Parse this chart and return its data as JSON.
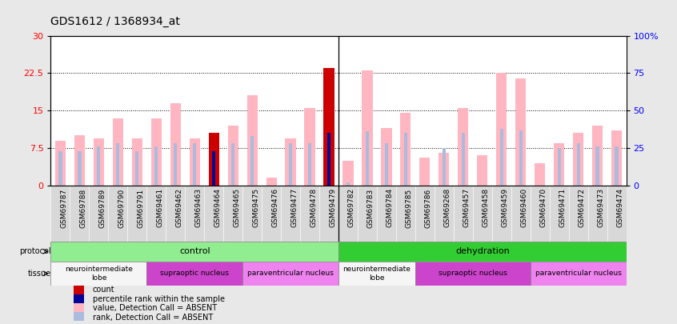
{
  "title": "GDS1612 / 1368934_at",
  "samples": [
    "GSM69787",
    "GSM69788",
    "GSM69789",
    "GSM69790",
    "GSM69791",
    "GSM69461",
    "GSM69462",
    "GSM69463",
    "GSM69464",
    "GSM69465",
    "GSM69475",
    "GSM69476",
    "GSM69477",
    "GSM69478",
    "GSM69479",
    "GSM69782",
    "GSM69783",
    "GSM69784",
    "GSM69785",
    "GSM69786",
    "GSM69268",
    "GSM69457",
    "GSM69458",
    "GSM69459",
    "GSM69460",
    "GSM69470",
    "GSM69471",
    "GSM69472",
    "GSM69473",
    "GSM69474"
  ],
  "value": [
    9.0,
    10.0,
    9.5,
    13.5,
    9.5,
    13.5,
    16.5,
    9.5,
    10.5,
    12.0,
    18.0,
    1.5,
    9.5,
    15.5,
    23.5,
    5.0,
    23.0,
    11.5,
    14.5,
    5.5,
    6.5,
    15.5,
    6.0,
    22.5,
    21.5,
    4.5,
    8.5,
    10.5,
    12.0,
    11.0
  ],
  "rank": [
    23.0,
    23.0,
    26.0,
    28.0,
    23.0,
    26.0,
    28.0,
    28.0,
    23.0,
    28.0,
    33.0,
    0.0,
    28.0,
    28.0,
    35.0,
    2.0,
    36.0,
    28.0,
    35.0,
    0.0,
    25.0,
    35.0,
    0.0,
    38.0,
    37.0,
    0.0,
    25.0,
    28.0,
    26.0,
    26.0
  ],
  "absent": [
    true,
    true,
    true,
    true,
    true,
    true,
    true,
    true,
    false,
    true,
    true,
    true,
    true,
    true,
    false,
    true,
    true,
    true,
    true,
    true,
    true,
    true,
    true,
    true,
    true,
    true,
    true,
    true,
    true,
    true
  ],
  "ylim_left": [
    0,
    30
  ],
  "ylim_right": [
    0,
    100
  ],
  "yticks_left": [
    0,
    7.5,
    15,
    22.5,
    30
  ],
  "yticks_right": [
    0,
    25,
    50,
    75,
    100
  ],
  "protocol_groups": [
    {
      "label": "control",
      "start": 0,
      "end": 15,
      "color": "#90EE90"
    },
    {
      "label": "dehydration",
      "start": 15,
      "end": 30,
      "color": "#32CD32"
    }
  ],
  "tissue_groups": [
    {
      "label": "neurointermediate\nlobe",
      "start": 0,
      "end": 5,
      "color": "#f5f5f5"
    },
    {
      "label": "supraoptic nucleus",
      "start": 5,
      "end": 10,
      "color": "#CC44CC"
    },
    {
      "label": "paraventricular nucleus",
      "start": 10,
      "end": 15,
      "color": "#EE82EE"
    },
    {
      "label": "neurointermediate\nlobe",
      "start": 15,
      "end": 19,
      "color": "#f5f5f5"
    },
    {
      "label": "supraoptic nucleus",
      "start": 19,
      "end": 25,
      "color": "#CC44CC"
    },
    {
      "label": "paraventricular nucleus",
      "start": 25,
      "end": 30,
      "color": "#EE82EE"
    }
  ],
  "bar_width": 0.55,
  "value_color_absent": "#FFB6C1",
  "value_color_present": "#CC0000",
  "rank_color_absent": "#AABBDD",
  "rank_color_present": "#000099",
  "background_color": "#e8e8e8",
  "plot_bg": "#ffffff",
  "title_fontsize": 10,
  "tick_fontsize": 6.5
}
